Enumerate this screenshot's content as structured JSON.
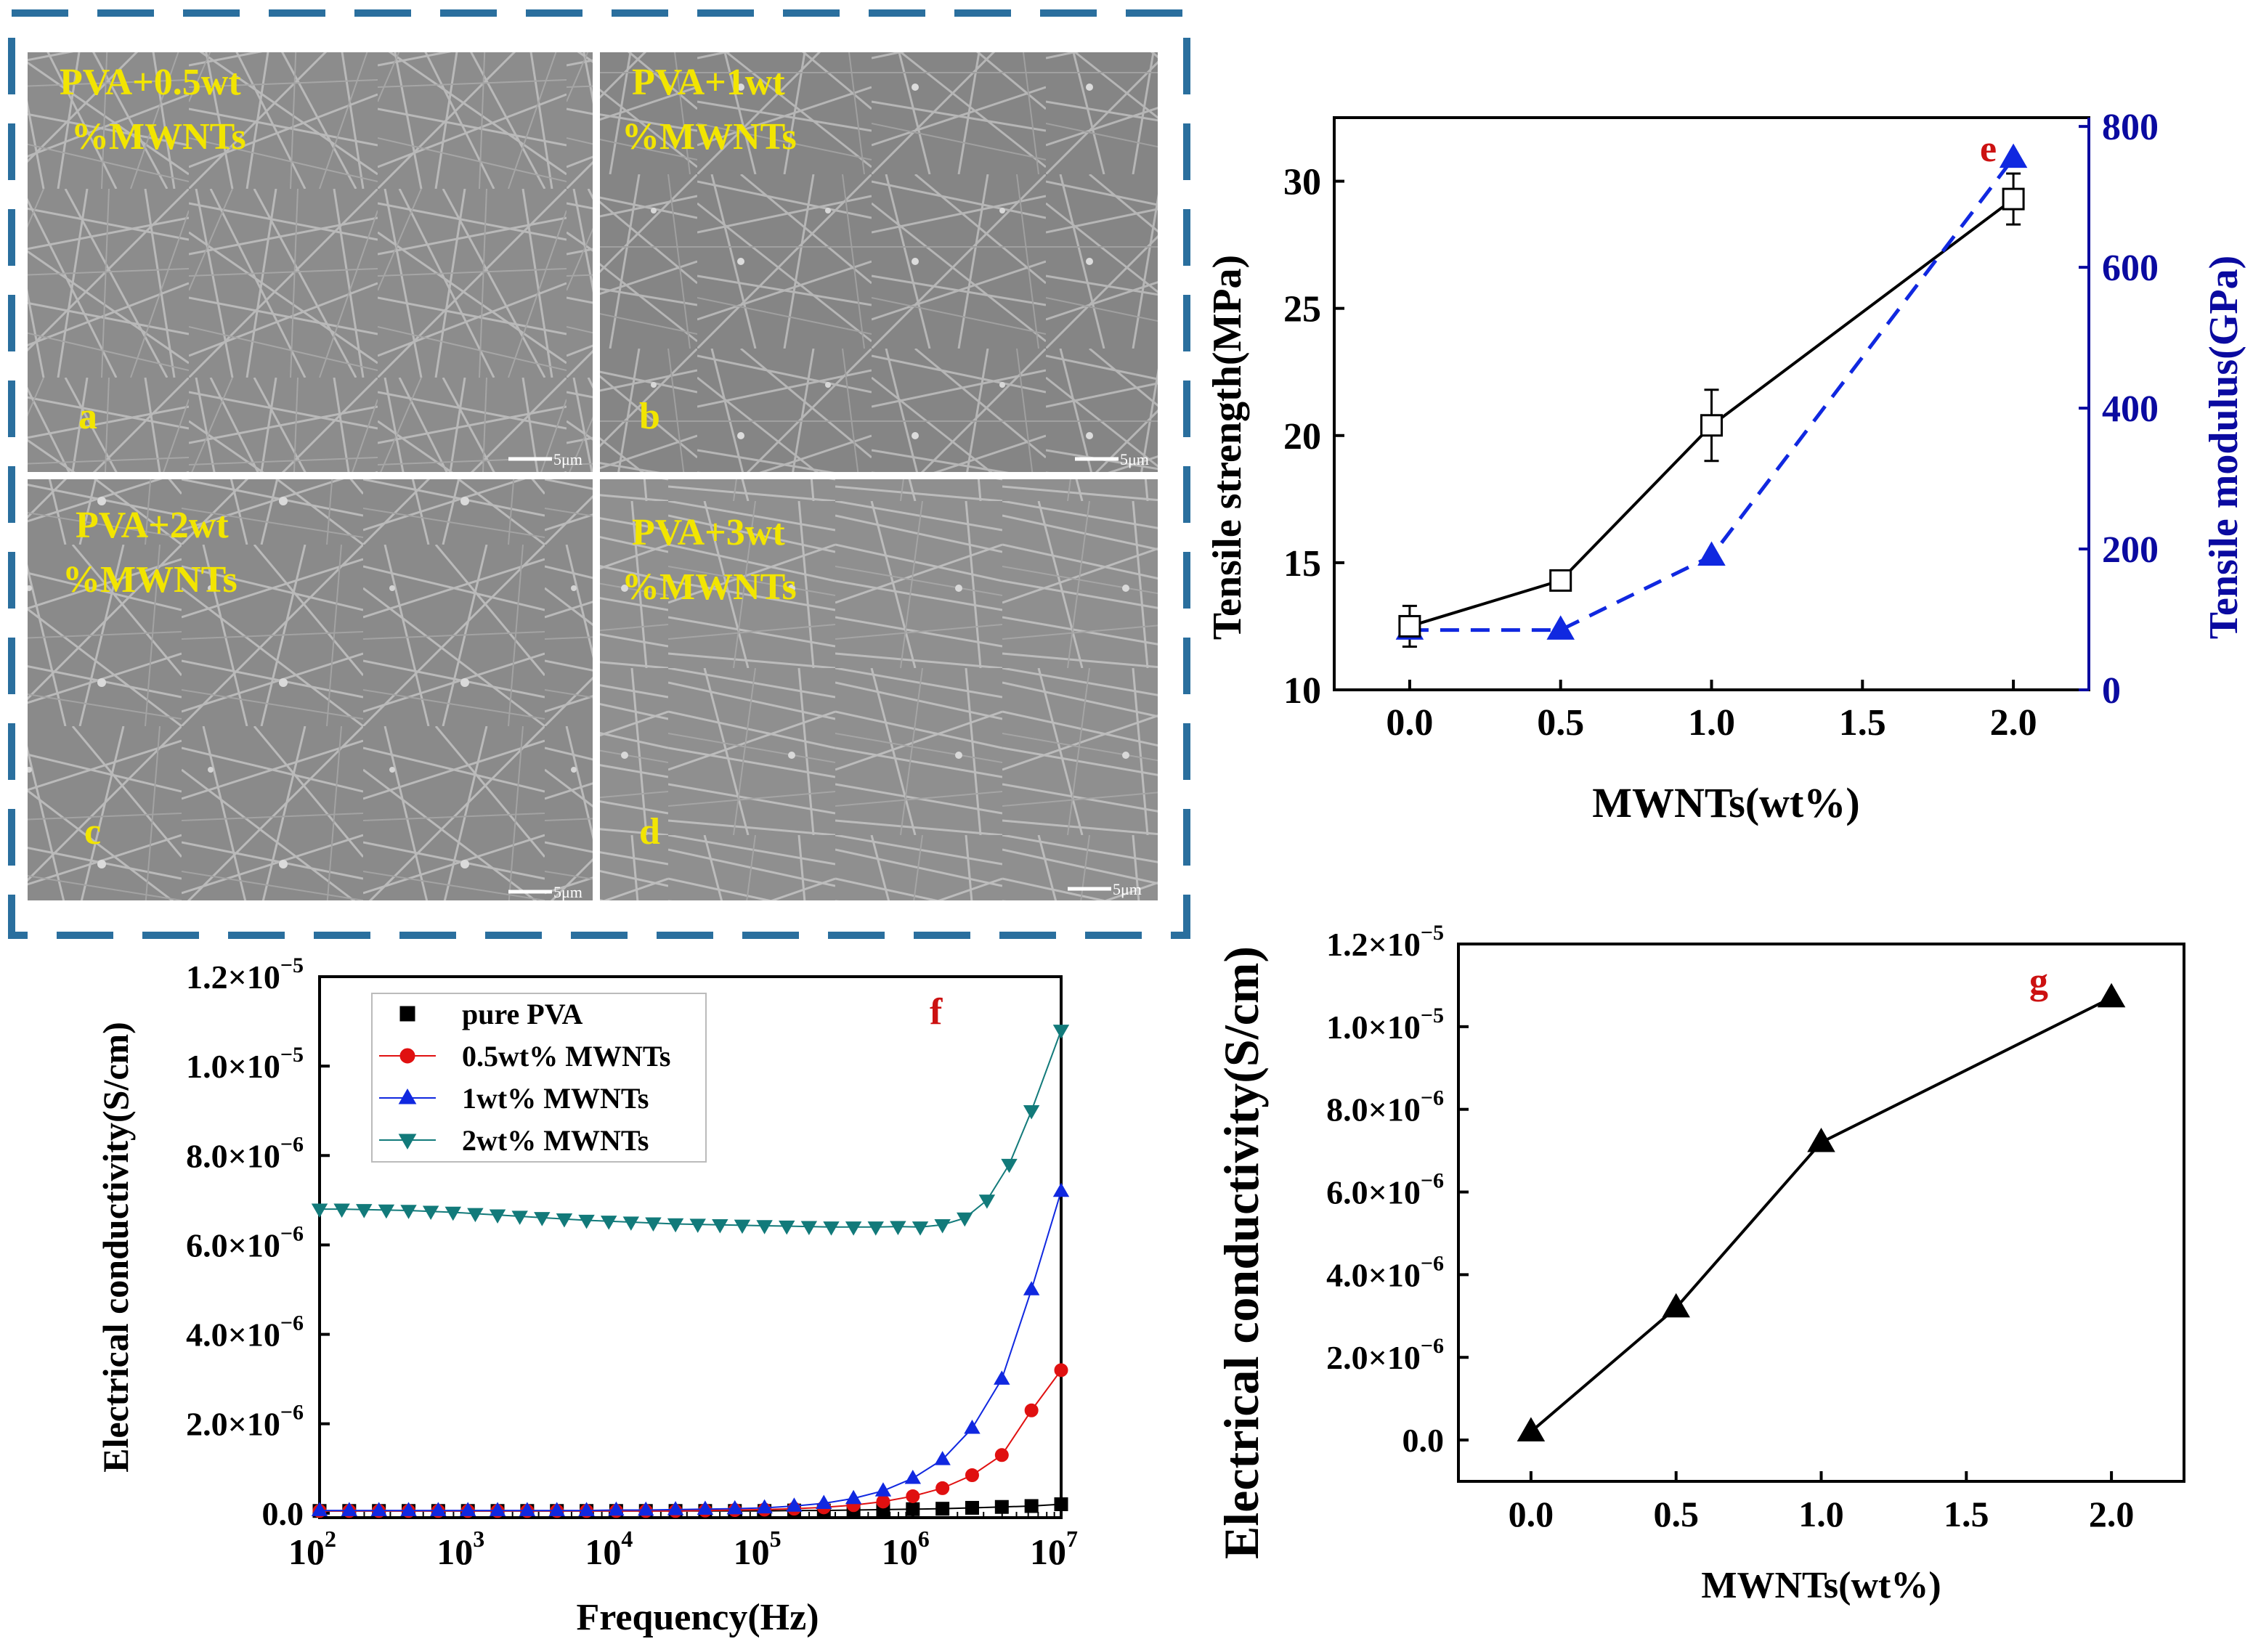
{
  "sem": {
    "panels": [
      {
        "line1": "PVA+0.5wt",
        "line2": "%MWNTs",
        "letter": "a",
        "scale": "5μm"
      },
      {
        "line1": "PVA+1wt",
        "line2": "%MWNTs",
        "letter": "b",
        "scale": "5μm"
      },
      {
        "line1": "PVA+2wt",
        "line2": "%MWNTs",
        "letter": "c",
        "scale": "5μm"
      },
      {
        "line1": "PVA+3wt",
        "line2": "%MWNTs",
        "letter": "d",
        "scale": "5μm"
      }
    ]
  },
  "colors": {
    "black": "#000000",
    "red": "#e01010",
    "blue": "#1028e0",
    "teal": "#127a7a",
    "frame_blue": "#2a6f9e",
    "panel_red": "#cc1111"
  },
  "chart_data": [
    {
      "id": "e",
      "type": "line",
      "panel_letter": "e",
      "xlabel": "MWNTs(wt%)",
      "ylabel": "Tensile strength(MPa)",
      "y2label": "Tensile modulus(GPa)",
      "xlim": [
        -0.25,
        2.25
      ],
      "ylim": [
        10,
        32.5
      ],
      "y2lim": [
        0,
        812.5
      ],
      "xticks": [
        "0.0",
        "0.5",
        "1.0",
        "1.5",
        "2.0"
      ],
      "yticks": [
        "10",
        "15",
        "20",
        "25",
        "30"
      ],
      "y2ticks": [
        "0",
        "200",
        "400",
        "600",
        "800"
      ],
      "series": [
        {
          "name": "Tensile strength",
          "marker": "open-square",
          "line": "solid",
          "color": "#000000",
          "x": [
            0.0,
            0.5,
            1.0,
            2.0
          ],
          "y": [
            12.5,
            14.3,
            20.4,
            29.3
          ],
          "err": [
            0.8,
            0.3,
            1.4,
            1.0
          ]
        },
        {
          "name": "Tensile modulus",
          "marker": "triangle",
          "line": "dashed",
          "color": "#1028e0",
          "axis": "right",
          "x": [
            0.0,
            0.5,
            1.0,
            2.0
          ],
          "y": [
            85,
            85,
            190,
            755
          ]
        }
      ]
    },
    {
      "id": "f",
      "type": "line",
      "panel_letter": "f",
      "xlabel": "Frequency(Hz)",
      "ylabel": "Electrical conductivity(S/cm)",
      "xscale": "log",
      "xlim_log10": [
        2,
        7
      ],
      "ylim": [
        -1e-07,
        1.2e-05
      ],
      "xticks": [
        "10",
        "10",
        "10",
        "10",
        "10",
        "10"
      ],
      "xtick_exponents": [
        "2",
        "3",
        "4",
        "5",
        "6",
        "7"
      ],
      "yticks": [
        {
          "mant": "0.0",
          "exp": ""
        },
        {
          "mant": "2.0×10",
          "exp": "−6"
        },
        {
          "mant": "4.0×10",
          "exp": "−6"
        },
        {
          "mant": "6.0×10",
          "exp": "−6"
        },
        {
          "mant": "8.0×10",
          "exp": "−6"
        },
        {
          "mant": "1.0×10",
          "exp": "−5"
        },
        {
          "mant": "1.2×10",
          "exp": "−5"
        }
      ],
      "legend": [
        "pure PVA",
        "0.5wt% MWNTs",
        "1wt% MWNTs",
        "2wt% MWNTs"
      ],
      "series": [
        {
          "name": "pure PVA",
          "marker": "square",
          "color": "#000000",
          "logx": [
            2.0,
            2.2,
            2.4,
            2.6,
            2.8,
            3.0,
            3.2,
            3.4,
            3.6,
            3.8,
            4.0,
            4.2,
            4.4,
            4.6,
            4.8,
            5.0,
            5.2,
            5.4,
            5.6,
            5.8,
            6.0,
            6.2,
            6.4,
            6.6,
            6.8,
            7.0
          ],
          "y": [
            5e-08,
            5e-08,
            5e-08,
            5e-08,
            5e-08,
            5e-08,
            5e-08,
            5e-08,
            5e-08,
            5e-08,
            5e-08,
            5e-08,
            5e-08,
            5e-08,
            5e-08,
            5e-08,
            6e-08,
            6e-08,
            7e-08,
            8e-08,
            9e-08,
            1e-07,
            1.2e-07,
            1.4e-07,
            1.6e-07,
            2e-07
          ]
        },
        {
          "name": "0.5wt% MWNTs",
          "marker": "circle",
          "color": "#e01010",
          "logx": [
            2.0,
            2.2,
            2.4,
            2.6,
            2.8,
            3.0,
            3.2,
            3.4,
            3.6,
            3.8,
            4.0,
            4.2,
            4.4,
            4.6,
            4.8,
            5.0,
            5.2,
            5.4,
            5.6,
            5.8,
            6.0,
            6.2,
            6.4,
            6.6,
            6.8,
            7.0
          ],
          "y": [
            5e-08,
            5e-08,
            5e-08,
            5e-08,
            5e-08,
            5e-08,
            5e-08,
            5e-08,
            5e-08,
            5e-08,
            5e-08,
            5e-08,
            5e-08,
            6e-08,
            7e-08,
            8e-08,
            1e-07,
            1.3e-07,
            1.8e-07,
            2.6e-07,
            3.8e-07,
            5.6e-07,
            8.5e-07,
            1.3e-06,
            2.3e-06,
            3.2e-06
          ]
        },
        {
          "name": "1wt% MWNTs",
          "marker": "triangle",
          "color": "#1028e0",
          "logx": [
            2.0,
            2.2,
            2.4,
            2.6,
            2.8,
            3.0,
            3.2,
            3.4,
            3.6,
            3.8,
            4.0,
            4.2,
            4.4,
            4.6,
            4.8,
            5.0,
            5.2,
            5.4,
            5.6,
            5.8,
            6.0,
            6.2,
            6.4,
            6.6,
            6.8,
            7.0
          ],
          "y": [
            6e-08,
            6e-08,
            6e-08,
            6e-08,
            6e-08,
            6e-08,
            6e-08,
            6e-08,
            6e-08,
            6e-08,
            7e-08,
            7e-08,
            8e-08,
            9e-08,
            1e-07,
            1.2e-07,
            1.6e-07,
            2.2e-07,
            3.3e-07,
            5e-07,
            7.8e-07,
            1.2e-06,
            1.9e-06,
            3e-06,
            5e-06,
            7.2e-06
          ]
        },
        {
          "name": "2wt% MWNTs",
          "marker": "triangle-down",
          "color": "#127a7a",
          "logx": [
            2.0,
            2.15,
            2.3,
            2.45,
            2.6,
            2.75,
            2.9,
            3.05,
            3.2,
            3.35,
            3.5,
            3.65,
            3.8,
            3.95,
            4.1,
            4.25,
            4.4,
            4.55,
            4.7,
            4.85,
            5.0,
            5.15,
            5.3,
            5.45,
            5.6,
            5.75,
            5.9,
            6.05,
            6.2,
            6.35,
            6.5,
            6.65,
            6.8,
            7.0
          ],
          "y": [
            6.8e-06,
            6.8e-06,
            6.79e-06,
            6.78e-06,
            6.77e-06,
            6.75e-06,
            6.73e-06,
            6.7e-06,
            6.67e-06,
            6.64e-06,
            6.61e-06,
            6.58e-06,
            6.55e-06,
            6.53e-06,
            6.51e-06,
            6.49e-06,
            6.47e-06,
            6.46e-06,
            6.45e-06,
            6.44e-06,
            6.43e-06,
            6.42e-06,
            6.41e-06,
            6.4e-06,
            6.4e-06,
            6.4e-06,
            6.41e-06,
            6.4e-06,
            6.45e-06,
            6.6e-06,
            7e-06,
            7.8e-06,
            9e-06,
            1.08e-05
          ]
        }
      ]
    },
    {
      "id": "g",
      "type": "line",
      "panel_letter": "g",
      "xlabel": "MWNTs(wt%)",
      "ylabel": "Electrical conductivity(S/cm)",
      "xlim": [
        -0.25,
        2.25
      ],
      "ylim": [
        -1e-06,
        1.2e-05
      ],
      "xticks": [
        "0.0",
        "0.5",
        "1.0",
        "1.5",
        "2.0"
      ],
      "yticks": [
        {
          "mant": "0.0",
          "exp": ""
        },
        {
          "mant": "2.0×10",
          "exp": "−6"
        },
        {
          "mant": "4.0×10",
          "exp": "−6"
        },
        {
          "mant": "6.0×10",
          "exp": "−6"
        },
        {
          "mant": "8.0×10",
          "exp": "−6"
        },
        {
          "mant": "1.0×10",
          "exp": "−5"
        },
        {
          "mant": "1.2×10",
          "exp": "−5"
        }
      ],
      "series": [
        {
          "name": "Electrical conductivity",
          "marker": "triangle",
          "line": "solid",
          "color": "#000000",
          "x": [
            0.0,
            0.5,
            1.0,
            2.0
          ],
          "y": [
            2e-07,
            3.2e-06,
            7.2e-06,
            1.07e-05
          ]
        }
      ]
    }
  ]
}
